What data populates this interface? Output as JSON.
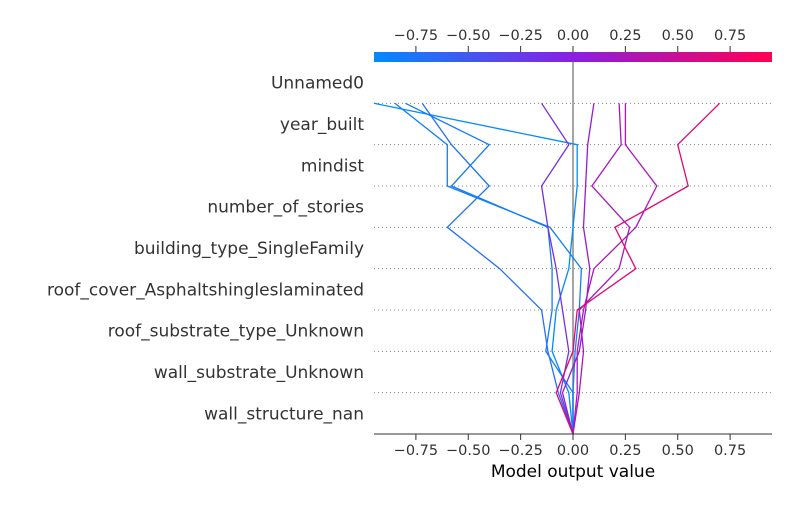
{
  "chart_data": {
    "type": "line",
    "xlabel": "Model output value",
    "xlim": [
      -0.95,
      0.95
    ],
    "base_value": 0.0,
    "x_ticks": [
      -0.75,
      -0.5,
      -0.25,
      0.0,
      0.25,
      0.5,
      0.75
    ],
    "x_tick_labels": [
      "−0.75",
      "−0.50",
      "−0.25",
      "0.00",
      "0.25",
      "0.50",
      "0.75"
    ],
    "features": [
      "Unnamed0",
      "year_built",
      "mindist",
      "number_of_stories",
      "building_type_SingleFamily",
      "roof_cover_Asphaltshingleslaminated",
      "roof_substrate_type_Unknown",
      "wall_substrate_Unknown",
      "wall_structure_nan"
    ],
    "color_scale": {
      "low": "#008bfb",
      "mid": "#8a1fe0",
      "high": "#ff0052"
    },
    "grid": true,
    "series": [
      {
        "values": [
          0.0,
          -0.02,
          -0.1,
          -0.08,
          -0.02,
          0.0,
          0.02,
          0.02,
          -0.95
        ]
      },
      {
        "values": [
          0.0,
          -0.07,
          -0.12,
          -0.15,
          -0.35,
          -0.6,
          -0.4,
          -0.58,
          -0.72
        ]
      },
      {
        "values": [
          0.0,
          0.0,
          -0.13,
          -0.1,
          -0.1,
          -0.12,
          -0.58,
          -0.4,
          -0.8
        ]
      },
      {
        "values": [
          0.0,
          0.0,
          0.01,
          0.03,
          0.04,
          -0.11,
          -0.6,
          -0.6,
          -0.85
        ]
      },
      {
        "values": [
          0.0,
          -0.06,
          -0.02,
          -0.05,
          -0.08,
          -0.12,
          -0.15,
          -0.02,
          -0.15
        ]
      },
      {
        "values": [
          0.0,
          -0.05,
          0.03,
          0.06,
          0.08,
          0.05,
          0.06,
          0.07,
          0.1
        ]
      },
      {
        "values": [
          0.0,
          0.03,
          0.05,
          0.03,
          0.22,
          0.27,
          0.09,
          0.23,
          0.22
        ]
      },
      {
        "values": [
          0.0,
          0.02,
          0.02,
          0.05,
          0.1,
          0.3,
          0.4,
          0.25,
          0.25
        ]
      },
      {
        "values": [
          0.0,
          -0.08,
          0.0,
          0.02,
          0.3,
          0.2,
          0.55,
          0.5,
          0.7
        ]
      }
    ]
  }
}
